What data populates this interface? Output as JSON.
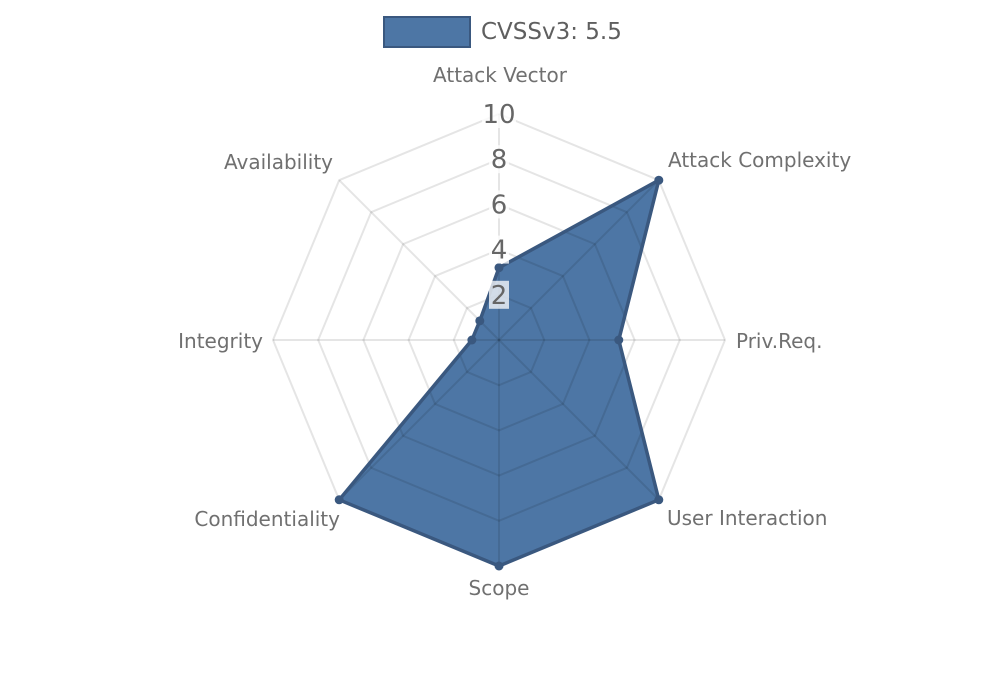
{
  "page": {
    "background": "#ffffff"
  },
  "legend": {
    "label": "CVSSv3: 5.5",
    "position": "top"
  },
  "chart_data": {
    "type": "radar",
    "title": "",
    "categories": [
      "Attack Vector",
      "Attack Complexity",
      "Priv.Req.",
      "User Interaction",
      "Scope",
      "Confidentiality",
      "Integrity",
      "Availability"
    ],
    "series": [
      {
        "name": "CVSSv3: 5.5",
        "values": [
          3.2,
          10,
          5.3,
          10,
          10,
          10,
          1.2,
          1.2
        ]
      }
    ],
    "scale": {
      "min": 0,
      "max": 10,
      "ticks": [
        2,
        4,
        6,
        8,
        10
      ]
    },
    "grid": "polygon-web",
    "legend_position": "top",
    "colors": {
      "fill": "#4d76a5",
      "border": "#3a587f",
      "point": "#3a587f",
      "grid_line": "rgba(0,0,0,0.10)",
      "tick_text": "#666666",
      "tick_backdrop": "rgba(255,255,255,0.75)",
      "axis_label": "#707070",
      "legend_text": "#5f5f5f"
    }
  }
}
